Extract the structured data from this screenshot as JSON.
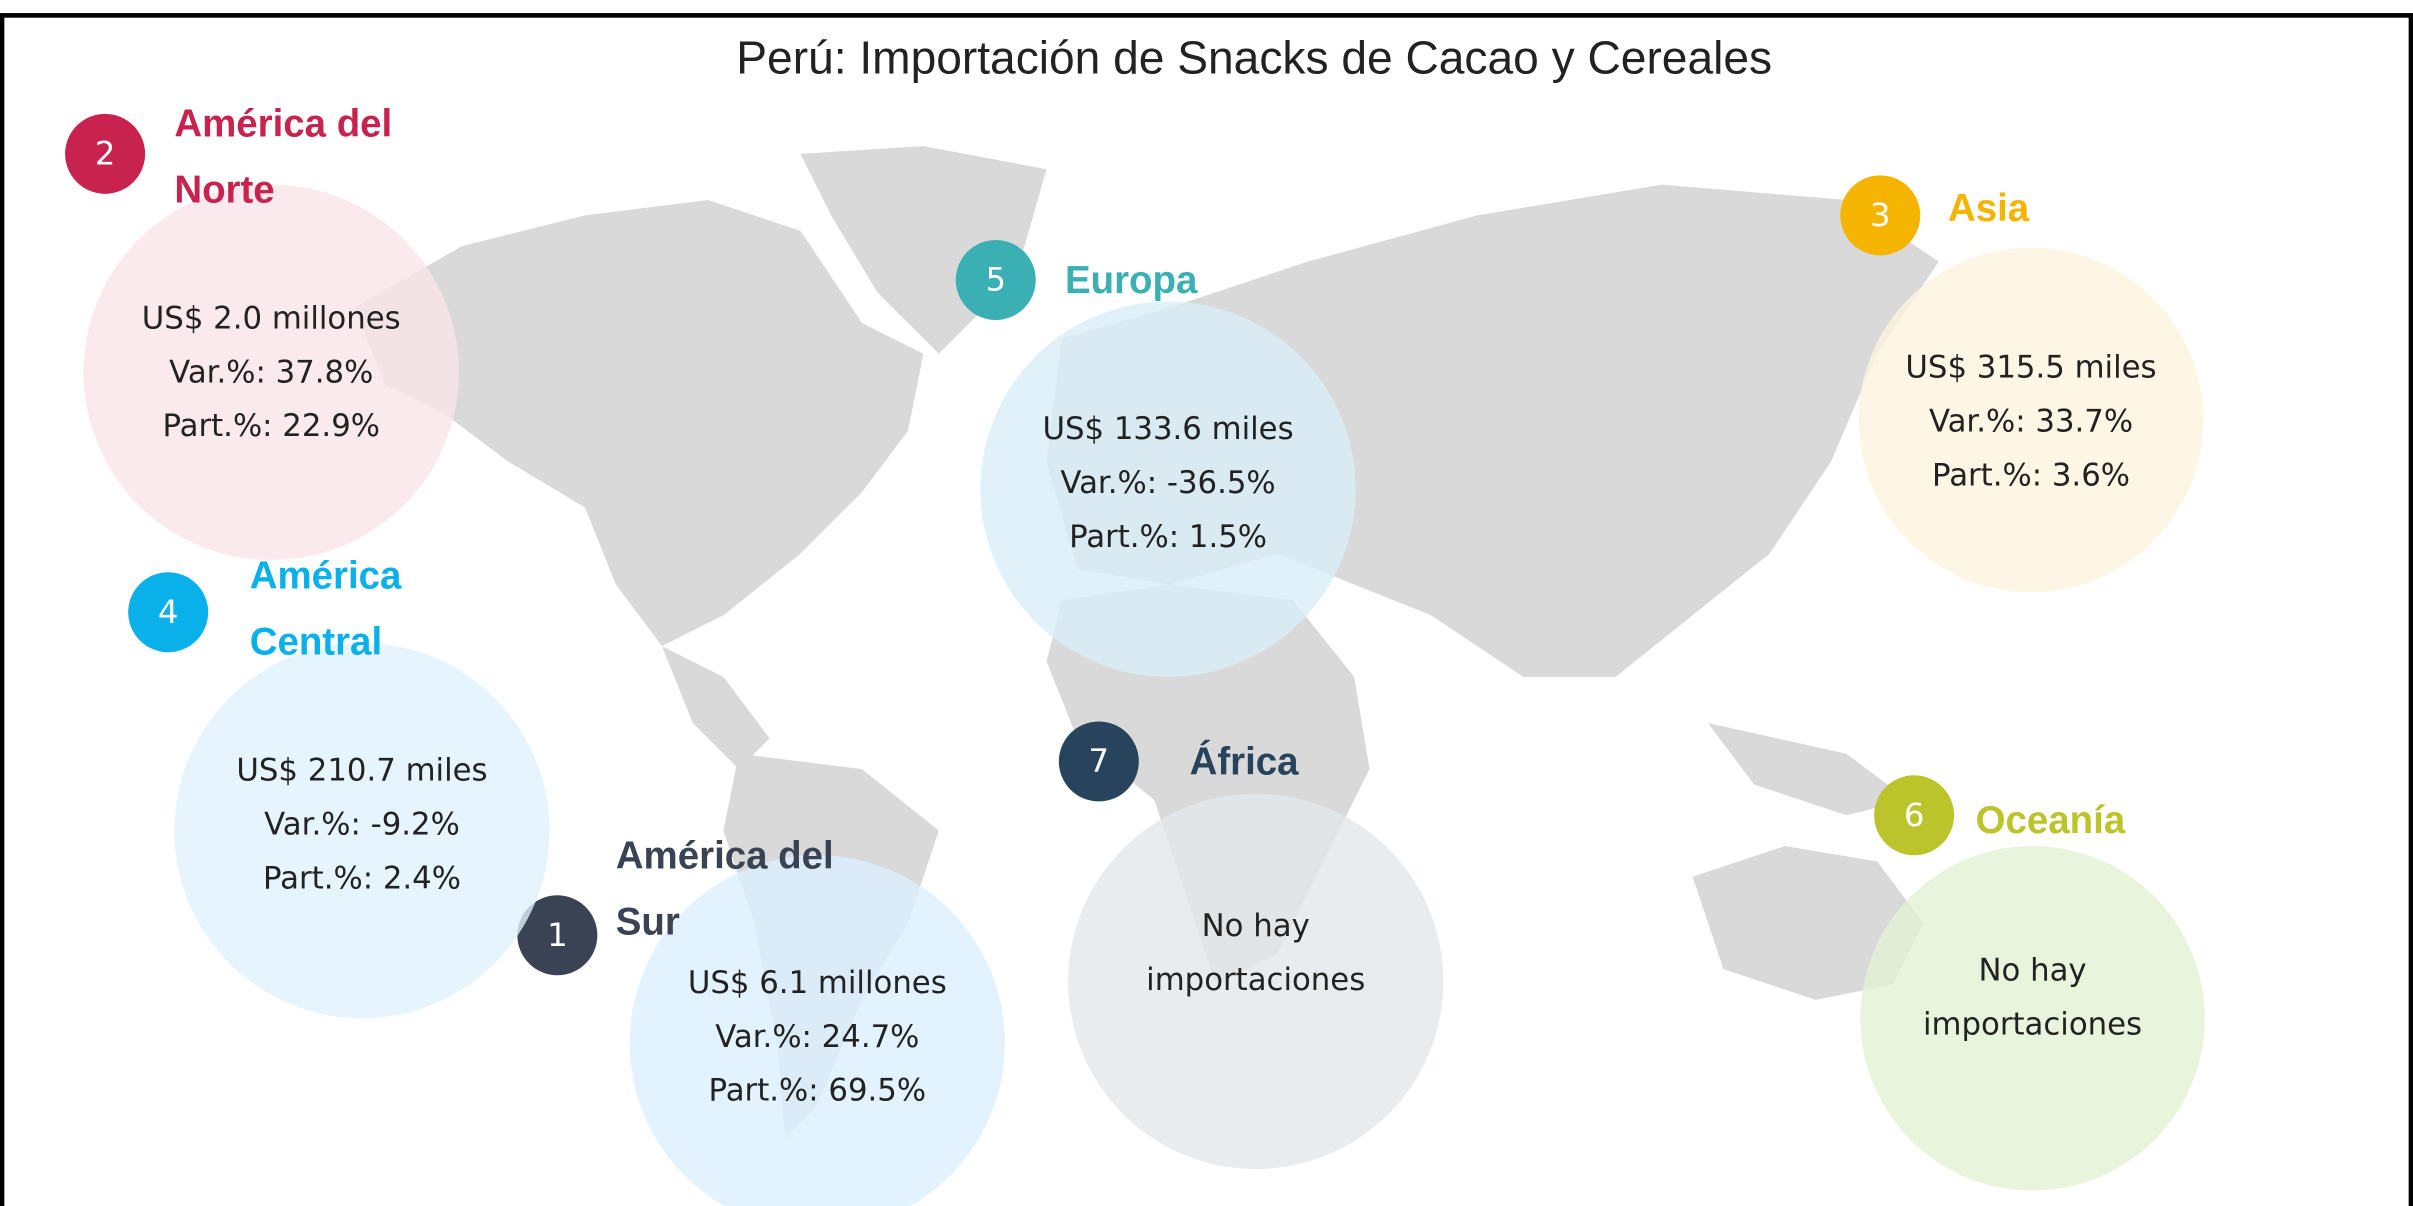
{
  "title": "Perú: Importación de Snacks de Cacao y Cereales",
  "regions": [
    {
      "number": "1",
      "name": [
        "América del",
        "Sur"
      ],
      "color": "#3a4354",
      "fill": "#dcefff",
      "lines": [
        "US$  6.1 millones",
        "Var.%: 24.7%",
        "Part.%: 69.5%"
      ]
    },
    {
      "number": "2",
      "name": [
        "América del",
        "Norte"
      ],
      "color": "#c8234f",
      "fill": "#f9e3e8",
      "lines": [
        "US$ 2.0 millones",
        "Var.%: 37.8%",
        "Part.%: 22.9%"
      ]
    },
    {
      "number": "3",
      "name": [
        "Asia"
      ],
      "color": "#f4b400",
      "fill": "#fdf4de",
      "lines": [
        "US$ 315.5 miles",
        "Var.%: 33.7%",
        "Part.%: 3.6%"
      ]
    },
    {
      "number": "4",
      "name": [
        "América",
        "Central"
      ],
      "color": "#0ab0ea",
      "fill": "#def1fc",
      "lines": [
        "US$ 210.7 miles",
        "Var.%: -9.2%",
        "Part.%: 2.4%"
      ]
    },
    {
      "number": "5",
      "name": [
        "Europa"
      ],
      "color": "#3aafb4",
      "fill": "#d8edf8",
      "lines": [
        "US$ 133.6 miles",
        "Var.%: -36.5%",
        "Part.%: 1.5%"
      ]
    },
    {
      "number": "6",
      "name": [
        "Oceanía"
      ],
      "color": "#bcc42b",
      "fill": "#e3f1d4",
      "lines": [
        "No hay",
        "importaciones"
      ]
    },
    {
      "number": "7",
      "name": [
        "África"
      ],
      "color": "#27445c",
      "fill": "#e4e7ea",
      "lines": [
        "No hay",
        "importaciones"
      ]
    }
  ]
}
